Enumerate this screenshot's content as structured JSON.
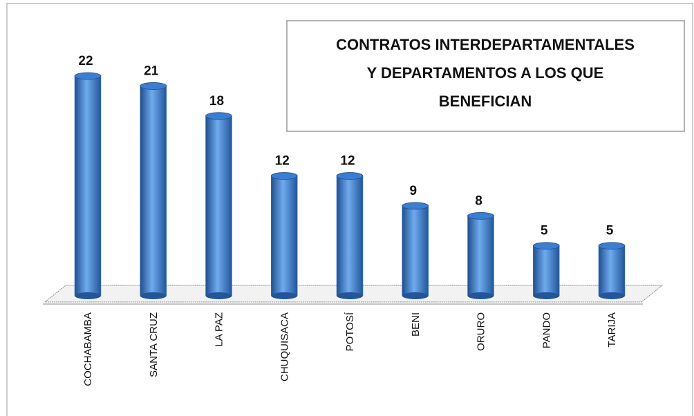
{
  "chart_data": {
    "type": "bar",
    "title": [
      "CONTRATOS INTERDEPARTAMENTALES",
      "Y DEPARTAMENTOS A LOS QUE",
      "BENEFICIAN"
    ],
    "categories": [
      "COCHABAMBA",
      "SANTA CRUZ",
      "LA PAZ",
      "CHUQUISACA",
      "POTOSÍ",
      "BENI",
      "ORURO",
      "PANDO",
      "TARIJA"
    ],
    "values": [
      22,
      21,
      18,
      12,
      12,
      9,
      8,
      5,
      5
    ],
    "color": "#3b7dd0"
  }
}
